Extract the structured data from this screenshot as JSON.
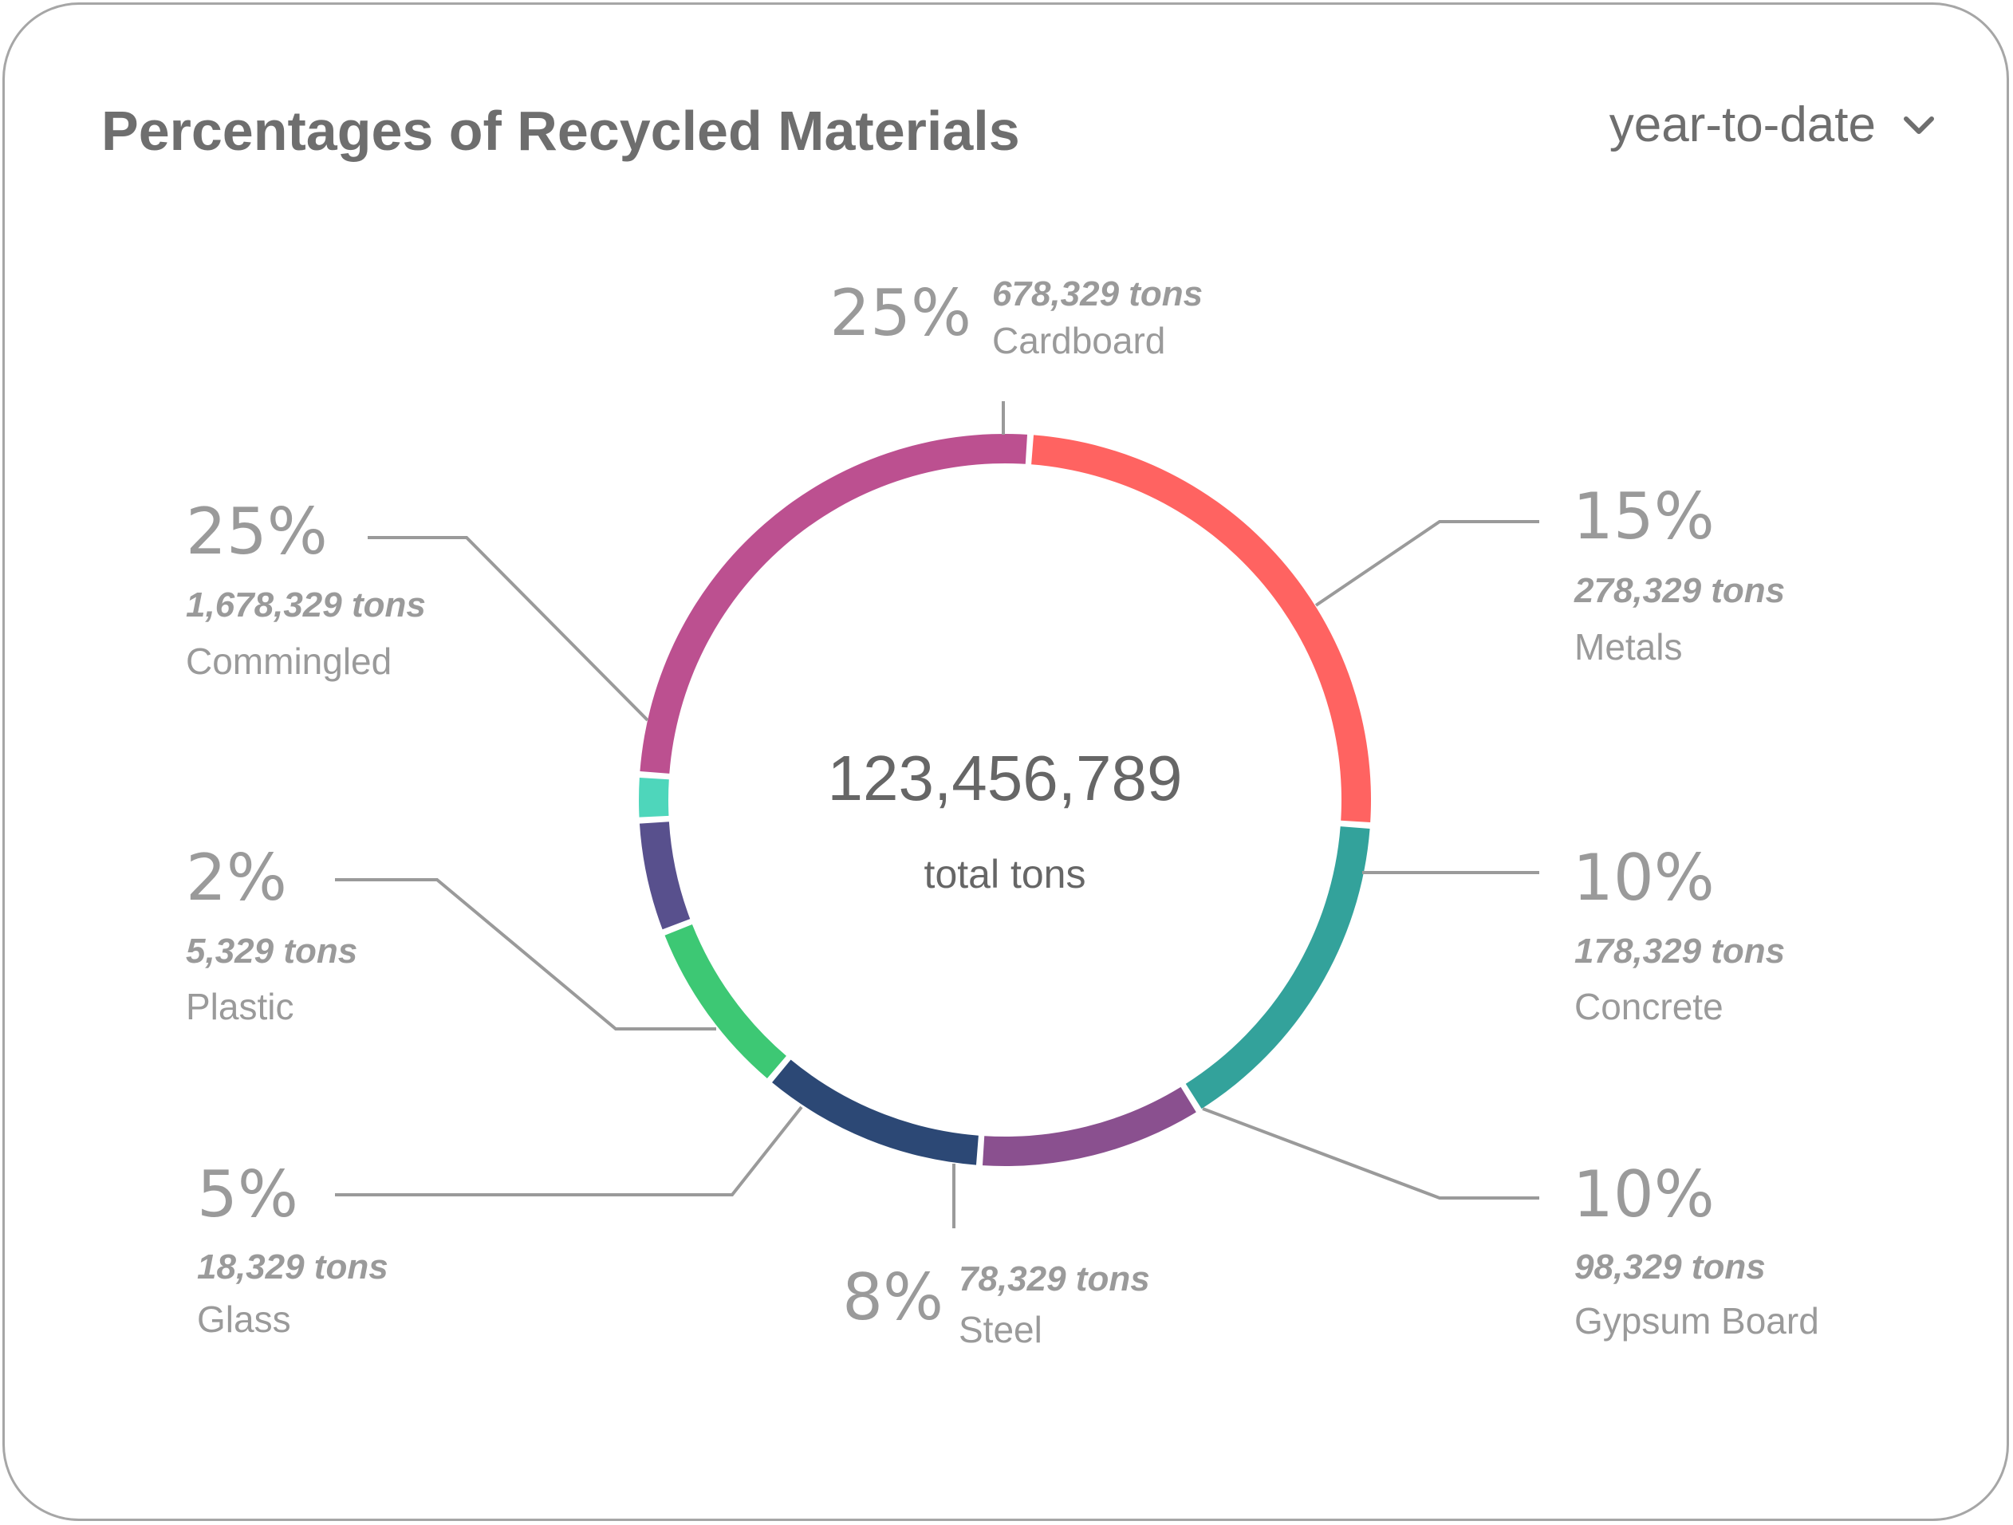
{
  "header": {
    "title": "Percentages of Recycled Materials",
    "period": "year-to-date",
    "period_icon": "chevron-down-icon"
  },
  "center": {
    "total": "123,456,789",
    "label": "total tons"
  },
  "chart_data": {
    "type": "donut",
    "title": "Percentages of Recycled Materials",
    "center_value": 123456789,
    "center_label": "total tons",
    "series": [
      {
        "name": "Cardboard",
        "percent": 25,
        "percent_label": "25%",
        "tons_label": "678,329 tons",
        "tons": 678329,
        "color": "#FF6361"
      },
      {
        "name": "Metals",
        "percent": 15,
        "percent_label": "15%",
        "tons_label": "278,329 tons",
        "tons": 278329,
        "color": "#33A29B"
      },
      {
        "name": "Concrete",
        "percent": 10,
        "percent_label": "10%",
        "tons_label": "178,329 tons",
        "tons": 178329,
        "color": "#8A508F"
      },
      {
        "name": "Gypsum Board",
        "percent": 10,
        "percent_label": "10%",
        "tons_label": "98,329 tons",
        "tons": 98329,
        "color": "#2C4875"
      },
      {
        "name": "Steel",
        "percent": 8,
        "percent_label": "8%",
        "tons_label": "78,329 tons",
        "tons": 78329,
        "color": "#3DC874"
      },
      {
        "name": "Glass",
        "percent": 5,
        "percent_label": "5%",
        "tons_label": "18,329 tons",
        "tons": 18329,
        "color": "#58508D"
      },
      {
        "name": "Plastic",
        "percent": 2,
        "percent_label": "2%",
        "tons_label": "5,329 tons",
        "tons": 5329,
        "color": "#4ED6BB"
      },
      {
        "name": "Commingled",
        "percent": 25,
        "percent_label": "25%",
        "tons_label": "1,678,329 tons",
        "tons": 1678329,
        "color": "#BC5090"
      }
    ]
  }
}
